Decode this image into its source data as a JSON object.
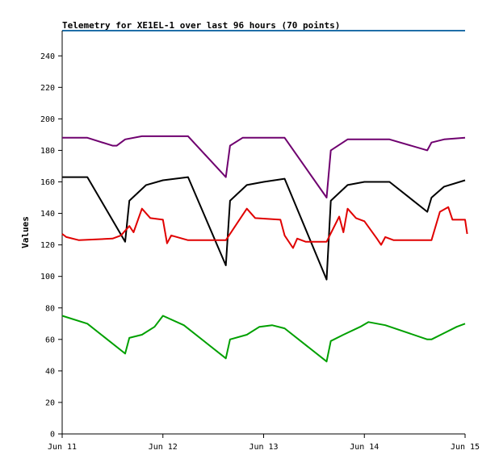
{
  "chart_data": {
    "type": "line",
    "title": "Telemetry for XE1EL-1 over last 96 hours (70 points)",
    "xlabel": "",
    "ylabel": "Values",
    "xlim": [
      "Jun 11",
      "Jun 15"
    ],
    "ylim": [
      0,
      256
    ],
    "x_ticks": [
      "Jun 11",
      "Jun 12",
      "Jun 13",
      "Jun 14",
      "Jun 15"
    ],
    "y_ticks": [
      0,
      20,
      40,
      60,
      80,
      100,
      120,
      140,
      160,
      180,
      200,
      220,
      240
    ],
    "grid": false,
    "legend": "none",
    "colors": {
      "axis": "#000000",
      "top_border": "#1f6fa8",
      "background": "#ffffff"
    },
    "series": [
      {
        "color": "#6f006f",
        "points": [
          [
            "Jun 11 00:00",
            188
          ],
          [
            "Jun 11 06:00",
            188
          ],
          [
            "Jun 11 12:00",
            183
          ],
          [
            "Jun 11 13:00",
            183
          ],
          [
            "Jun 11 15:00",
            187
          ],
          [
            "Jun 11 19:00",
            189
          ],
          [
            "Jun 12 00:00",
            189
          ],
          [
            "Jun 12 06:00",
            189
          ],
          [
            "Jun 12 15:00",
            163
          ],
          [
            "Jun 12 16:00",
            183
          ],
          [
            "Jun 12 19:00",
            188
          ],
          [
            "Jun 13 00:00",
            188
          ],
          [
            "Jun 13 05:00",
            188
          ],
          [
            "Jun 13 15:00",
            150
          ],
          [
            "Jun 13 16:00",
            180
          ],
          [
            "Jun 13 20:00",
            187
          ],
          [
            "Jun 14 00:00",
            187
          ],
          [
            "Jun 14 06:00",
            187
          ],
          [
            "Jun 14 15:00",
            180
          ],
          [
            "Jun 14 16:00",
            185
          ],
          [
            "Jun 14 19:00",
            187
          ],
          [
            "Jun 15 00:00",
            188
          ]
        ]
      },
      {
        "color": "#000000",
        "points": [
          [
            "Jun 11 00:00",
            163
          ],
          [
            "Jun 11 06:00",
            163
          ],
          [
            "Jun 11 15:00",
            122
          ],
          [
            "Jun 11 16:00",
            148
          ],
          [
            "Jun 11 20:00",
            158
          ],
          [
            "Jun 12 00:00",
            161
          ],
          [
            "Jun 12 06:00",
            163
          ],
          [
            "Jun 12 15:00",
            107
          ],
          [
            "Jun 12 16:00",
            148
          ],
          [
            "Jun 12 20:00",
            158
          ],
          [
            "Jun 13 00:00",
            160
          ],
          [
            "Jun 13 05:00",
            162
          ],
          [
            "Jun 13 15:00",
            98
          ],
          [
            "Jun 13 16:00",
            148
          ],
          [
            "Jun 13 20:00",
            158
          ],
          [
            "Jun 14 00:00",
            160
          ],
          [
            "Jun 14 06:00",
            160
          ],
          [
            "Jun 14 15:00",
            141
          ],
          [
            "Jun 14 16:00",
            150
          ],
          [
            "Jun 14 19:00",
            157
          ],
          [
            "Jun 15 00:00",
            161
          ]
        ]
      },
      {
        "color": "#e00000",
        "points": [
          [
            "Jun 11 00:00",
            127
          ],
          [
            "Jun 11 01:00",
            125
          ],
          [
            "Jun 11 04:00",
            123
          ],
          [
            "Jun 11 12:00",
            124
          ],
          [
            "Jun 11 14:00",
            126
          ],
          [
            "Jun 11 16:00",
            132
          ],
          [
            "Jun 11 17:00",
            128
          ],
          [
            "Jun 11 19:00",
            143
          ],
          [
            "Jun 11 21:00",
            137
          ],
          [
            "Jun 12 00:00",
            136
          ],
          [
            "Jun 12 01:00",
            121
          ],
          [
            "Jun 12 02:00",
            126
          ],
          [
            "Jun 12 06:00",
            123
          ],
          [
            "Jun 12 15:00",
            123
          ],
          [
            "Jun 12 18:00",
            135
          ],
          [
            "Jun 12 20:00",
            143
          ],
          [
            "Jun 12 22:00",
            137
          ],
          [
            "Jun 13 04:00",
            136
          ],
          [
            "Jun 13 05:00",
            126
          ],
          [
            "Jun 13 07:00",
            118
          ],
          [
            "Jun 13 08:00",
            124
          ],
          [
            "Jun 13 10:00",
            122
          ],
          [
            "Jun 13 15:00",
            122
          ],
          [
            "Jun 13 18:00",
            138
          ],
          [
            "Jun 13 19:00",
            128
          ],
          [
            "Jun 13 20:00",
            143
          ],
          [
            "Jun 13 22:00",
            137
          ],
          [
            "Jun 14 00:00",
            135
          ],
          [
            "Jun 14 03:00",
            124
          ],
          [
            "Jun 14 04:00",
            120
          ],
          [
            "Jun 14 05:00",
            125
          ],
          [
            "Jun 14 07:00",
            123
          ],
          [
            "Jun 14 16:00",
            123
          ],
          [
            "Jun 14 18:00",
            141
          ],
          [
            "Jun 14 20:00",
            144
          ],
          [
            "Jun 14 21:00",
            136
          ],
          [
            "Jun 15 00:00",
            136
          ],
          [
            "Jun 15 00:30",
            127
          ]
        ]
      },
      {
        "color": "#00a000",
        "points": [
          [
            "Jun 11 00:00",
            75
          ],
          [
            "Jun 11 06:00",
            70
          ],
          [
            "Jun 11 15:00",
            51
          ],
          [
            "Jun 11 16:00",
            61
          ],
          [
            "Jun 11 19:00",
            63
          ],
          [
            "Jun 11 22:00",
            68
          ],
          [
            "Jun 12 00:00",
            75
          ],
          [
            "Jun 12 05:00",
            69
          ],
          [
            "Jun 12 15:00",
            48
          ],
          [
            "Jun 12 16:00",
            60
          ],
          [
            "Jun 12 20:00",
            63
          ],
          [
            "Jun 12 23:00",
            68
          ],
          [
            "Jun 13 02:00",
            69
          ],
          [
            "Jun 13 05:00",
            67
          ],
          [
            "Jun 13 15:00",
            46
          ],
          [
            "Jun 13 16:00",
            59
          ],
          [
            "Jun 13 19:00",
            63
          ],
          [
            "Jun 13 23:00",
            68
          ],
          [
            "Jun 14 01:00",
            71
          ],
          [
            "Jun 14 05:00",
            69
          ],
          [
            "Jun 14 15:00",
            60
          ],
          [
            "Jun 14 16:00",
            60
          ],
          [
            "Jun 14 19:00",
            64
          ],
          [
            "Jun 14 22:00",
            68
          ],
          [
            "Jun 15 00:00",
            70
          ]
        ]
      }
    ]
  }
}
